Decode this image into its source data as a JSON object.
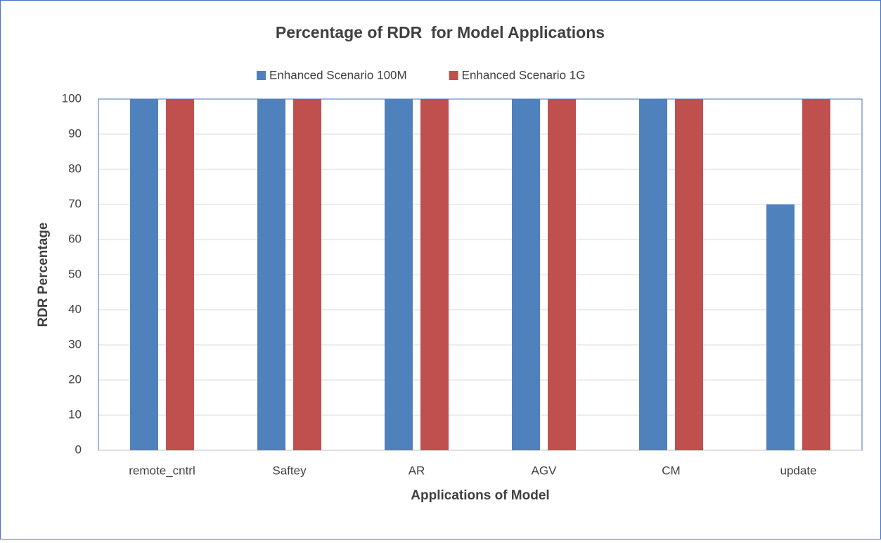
{
  "chart_data": {
    "type": "bar",
    "title": "Percentage of RDR  for Model Applications",
    "x_label": "Applications of Model",
    "y_label": "RDR Percentage",
    "categories": [
      "remote_cntrl",
      "Saftey",
      "AR",
      "AGV",
      "CM",
      "update"
    ],
    "series": [
      {
        "name": "Enhanced Scenario 100M",
        "color": "#4f81bd",
        "values": [
          100,
          100,
          100,
          100,
          100,
          70
        ]
      },
      {
        "name": "Enhanced Scenario 1G",
        "color": "#c0504d",
        "values": [
          100,
          100,
          100,
          100,
          100,
          100
        ]
      }
    ],
    "ylim": [
      0,
      100
    ],
    "yticks": [
      0,
      10,
      20,
      30,
      40,
      50,
      60,
      70,
      80,
      90,
      100
    ],
    "grid": true,
    "legend": "top"
  }
}
